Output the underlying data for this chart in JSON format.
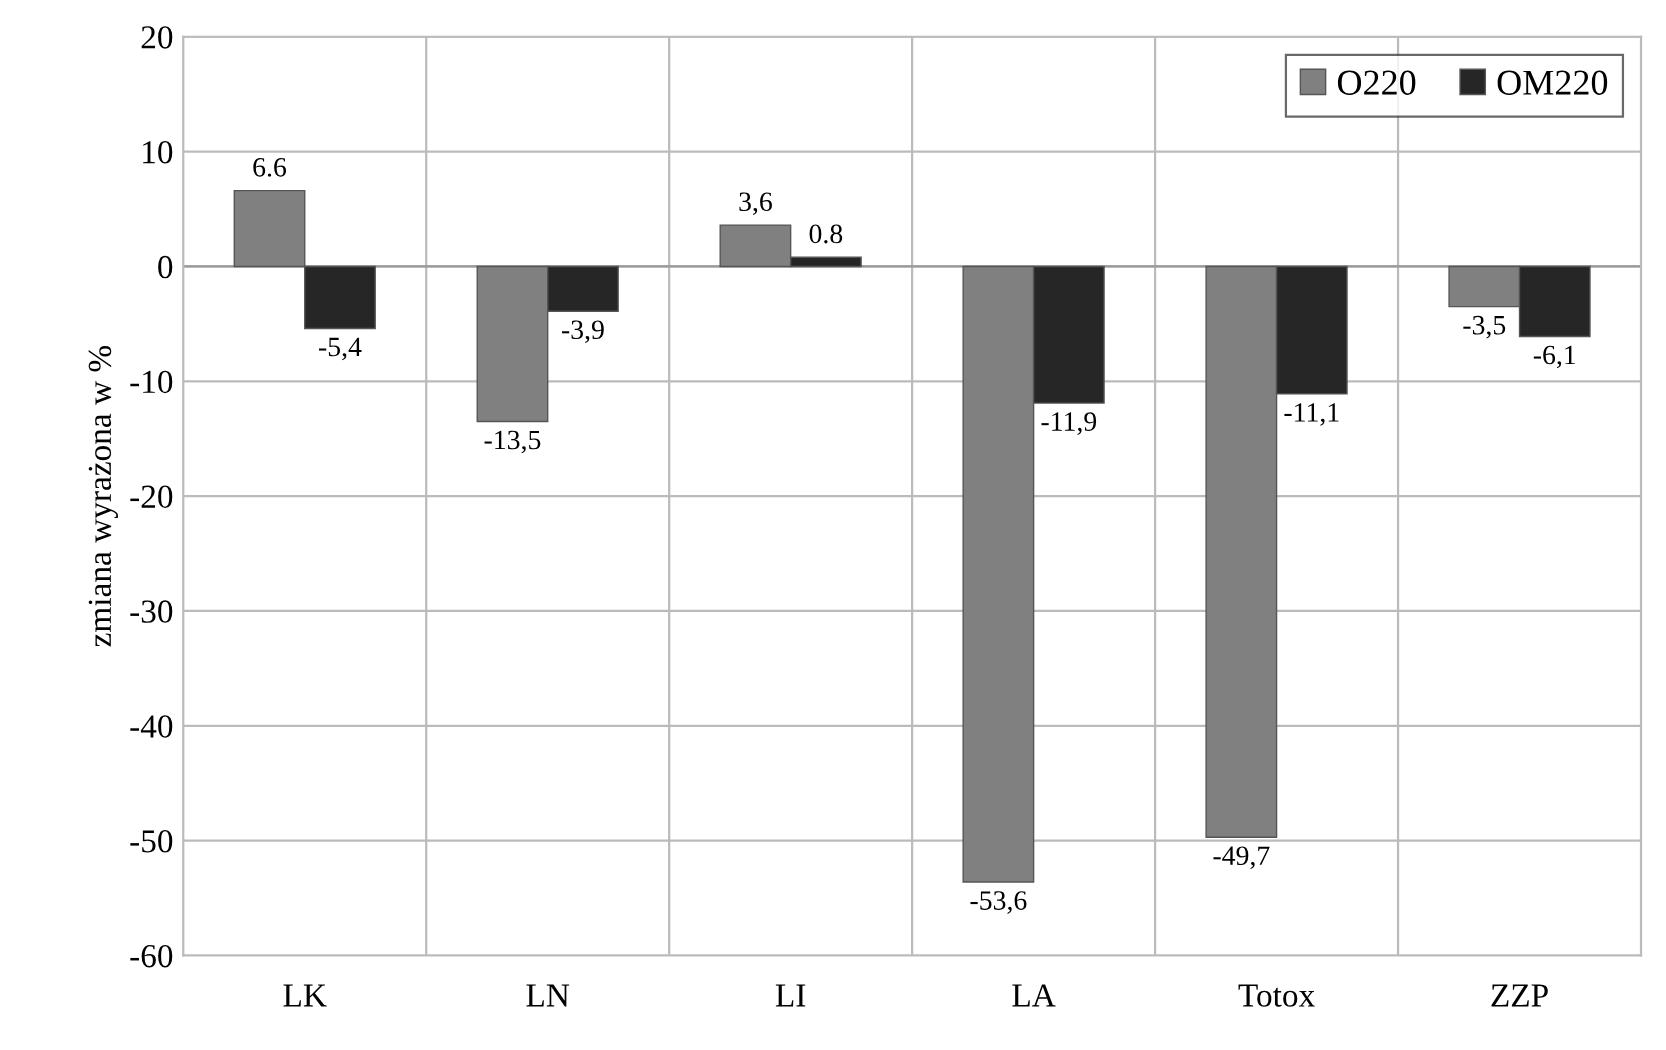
{
  "chart_data": {
    "type": "bar",
    "ylabel": "zmiana wyrażona w %",
    "categories": [
      "LK",
      "LN",
      "LI",
      "LA",
      "Totox",
      "ZZP"
    ],
    "series": [
      {
        "name": "O220",
        "color": "#808080",
        "values": [
          6.6,
          -13.5,
          3.6,
          -53.6,
          -49.7,
          -3.5
        ],
        "value_labels": [
          "6.6",
          "-13,5",
          "3,6",
          "-53,6",
          "-49,7",
          "-3,5"
        ]
      },
      {
        "name": "OM220",
        "color": "#262626",
        "values": [
          -5.4,
          -3.9,
          0.8,
          -11.9,
          -11.1,
          -6.1
        ],
        "value_labels": [
          "-5,4",
          "-3,9",
          "0.8",
          "-11,9",
          "-11,1",
          "-6,1"
        ]
      }
    ],
    "ylim": [
      -60,
      20
    ],
    "yticks": [
      -60,
      -50,
      -40,
      -30,
      -20,
      -10,
      0,
      10,
      20
    ],
    "grid": true,
    "legend": "top right"
  }
}
